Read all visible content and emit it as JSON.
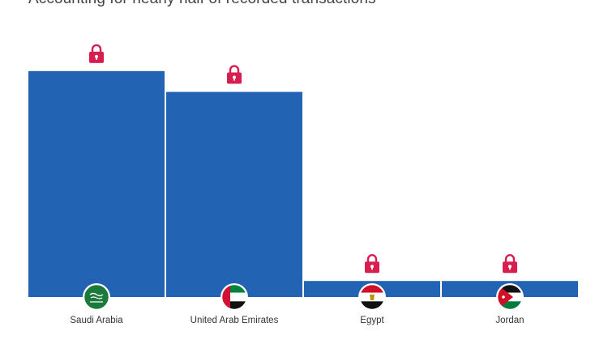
{
  "header": {
    "subtitle": "Accounting for nearly half of recorded transactions"
  },
  "chart_data": {
    "type": "bar",
    "categories": [
      "Saudi Arabia",
      "United Arab Emirates",
      "Egypt",
      "Jordan"
    ],
    "values": [
      28.2,
      25.6,
      2.0,
      2.0
    ],
    "ylim": [
      0,
      30
    ],
    "grid": false,
    "legend": "none",
    "bar_color": "#2363b3",
    "lock_color": "#d81e4f",
    "category_icons": [
      "flag-saudi-arabia",
      "flag-united-arab-emirates",
      "flag-egypt",
      "flag-jordan"
    ]
  }
}
